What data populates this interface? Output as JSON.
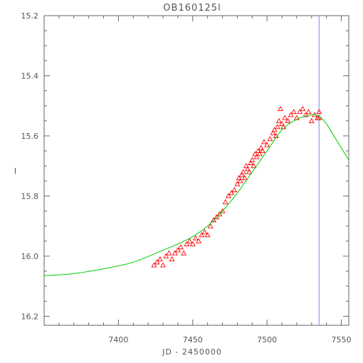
{
  "chart_data": {
    "type": "scatter",
    "title": "OB160125l",
    "xlabel": "JD - 2450000",
    "ylabel": "I",
    "xlim": [
      7350,
      7555
    ],
    "ylim": [
      16.23,
      15.2
    ],
    "y_inverted": true,
    "x_ticks": [
      7400,
      7450,
      7500,
      7550
    ],
    "y_ticks": [
      15.2,
      15.4,
      15.6,
      15.8,
      16.0,
      16.2
    ],
    "x_tick_labels": [
      "7400",
      "7450",
      "7500",
      "7550"
    ],
    "y_tick_labels": [
      "15.2",
      "15.4",
      "15.6",
      "15.8",
      "16.0",
      "16.2"
    ],
    "grid": false,
    "legend": "none",
    "vertical_line": {
      "x": 7535,
      "color": "#8080ff"
    },
    "series": [
      {
        "type": "line",
        "color": "#00cc00",
        "x": [
          7350,
          7370,
          7390,
          7410,
          7430,
          7440,
          7450,
          7460,
          7470,
          7480,
          7490,
          7500,
          7510,
          7520,
          7530,
          7535,
          7540,
          7545,
          7550,
          7555
        ],
        "y": [
          16.065,
          16.058,
          16.042,
          16.02,
          15.98,
          15.96,
          15.935,
          15.9,
          15.85,
          15.79,
          15.72,
          15.65,
          15.58,
          15.545,
          15.53,
          15.535,
          15.56,
          15.6,
          15.64,
          15.68
        ]
      },
      {
        "type": "scatter",
        "marker": "triangle",
        "color": "#ff0000",
        "x": [
          7424,
          7426,
          7428,
          7430,
          7432,
          7434,
          7436,
          7438,
          7440,
          7442,
          7444,
          7446,
          7448,
          7450,
          7452,
          7454,
          7456,
          7458,
          7460,
          7462,
          7464,
          7466,
          7468,
          7470,
          7472,
          7474,
          7476,
          7478,
          7480,
          7481,
          7482,
          7483,
          7484,
          7485,
          7486,
          7487,
          7488,
          7489,
          7490,
          7491,
          7492,
          7493,
          7494,
          7495,
          7496,
          7497,
          7498,
          7500,
          7502,
          7504,
          7505,
          7506,
          7507,
          7508,
          7509,
          7510,
          7511,
          7512,
          7514,
          7516,
          7518,
          7520,
          7522,
          7524,
          7526,
          7528,
          7530,
          7532,
          7534,
          7535,
          7535
        ],
        "y": [
          16.03,
          16.02,
          16.01,
          16.03,
          16.0,
          15.99,
          16.01,
          15.99,
          15.98,
          15.97,
          15.99,
          15.96,
          15.95,
          15.96,
          15.94,
          15.95,
          15.93,
          15.92,
          15.93,
          15.9,
          15.88,
          15.87,
          15.86,
          15.85,
          15.82,
          15.8,
          15.79,
          15.78,
          15.76,
          15.74,
          15.75,
          15.73,
          15.72,
          15.74,
          15.7,
          15.71,
          15.72,
          15.69,
          15.68,
          15.7,
          15.66,
          15.67,
          15.65,
          15.66,
          15.64,
          15.65,
          15.62,
          15.63,
          15.61,
          15.59,
          15.58,
          15.6,
          15.57,
          15.55,
          15.51,
          15.56,
          15.57,
          15.54,
          15.55,
          15.53,
          15.52,
          15.54,
          15.52,
          15.51,
          15.53,
          15.52,
          15.55,
          15.53,
          15.54,
          15.52,
          15.54
        ]
      }
    ]
  }
}
